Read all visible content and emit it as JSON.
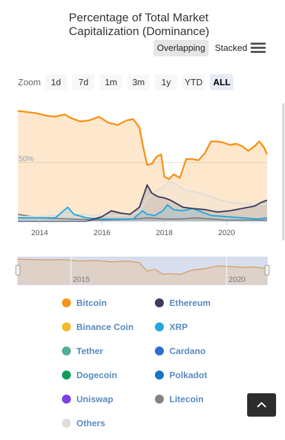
{
  "title_line1": "Percentage of Total Market",
  "title_line2": "Capitalization (Dominance)",
  "modes": [
    "Overlapping",
    "Stacked"
  ],
  "active_mode": "Overlapping",
  "zoom": {
    "label": "Zoom",
    "options": [
      "1d",
      "7d",
      "1m",
      "3m",
      "1y",
      "YTD",
      "ALL"
    ],
    "active": "ALL"
  },
  "colors": {
    "bitcoin": "#f7931a",
    "ethereum": "#3c3c5d",
    "binance": "#f3ba2f",
    "xrp": "#23a7e0",
    "tether": "#50af95",
    "cardano": "#2a71d0",
    "dogecoin": "#0f9d58",
    "polkadot": "#1475c4",
    "uniswap": "#7b3fe4",
    "litecoin": "#838383",
    "others": "#dddddd"
  },
  "legend": [
    {
      "name": "Bitcoin",
      "color": "#f7931a"
    },
    {
      "name": "Ethereum",
      "color": "#3c3c5d"
    },
    {
      "name": "Binance Coin",
      "color": "#f3ba2f"
    },
    {
      "name": "XRP",
      "color": "#23a7e0"
    },
    {
      "name": "Tether",
      "color": "#50af95"
    },
    {
      "name": "Cardano",
      "color": "#2a71d0"
    },
    {
      "name": "Dogecoin",
      "color": "#0f9d58"
    },
    {
      "name": "Polkadot",
      "color": "#1475c4"
    },
    {
      "name": "Uniswap",
      "color": "#7b3fe4"
    },
    {
      "name": "Litecoin",
      "color": "#838383"
    },
    {
      "name": "Others",
      "color": "#dddddd"
    }
  ],
  "chart_data": {
    "type": "area",
    "title": "Percentage of Total Market Capitalization (Dominance)",
    "y_reference_label": "50%",
    "y_reference_value": 50,
    "ylim": [
      0,
      100
    ],
    "xlim": [
      2013.3,
      2021.3
    ],
    "x_ticks": [
      2014,
      2016,
      2018,
      2020
    ],
    "navigator_x_ticks": [
      2015,
      2020
    ],
    "series": [
      {
        "name": "Bitcoin",
        "color": "#f7931a",
        "fill": true,
        "x": [
          2013.3,
          2013.6,
          2013.9,
          2014.2,
          2014.5,
          2014.8,
          2015.0,
          2015.3,
          2015.6,
          2015.9,
          2016.2,
          2016.5,
          2016.8,
          2017.0,
          2017.2,
          2017.3,
          2017.45,
          2017.6,
          2017.75,
          2017.9,
          2018.0,
          2018.15,
          2018.3,
          2018.5,
          2018.7,
          2018.9,
          2019.1,
          2019.3,
          2019.5,
          2019.7,
          2019.9,
          2020.1,
          2020.3,
          2020.5,
          2020.7,
          2020.9,
          2021.05,
          2021.2,
          2021.3
        ],
        "y": [
          94,
          93,
          92,
          90,
          89,
          91,
          88,
          85,
          86,
          89,
          84,
          82,
          86,
          87,
          80,
          66,
          48,
          49,
          55,
          57,
          38,
          36,
          40,
          37,
          53,
          53,
          52,
          58,
          68,
          68,
          67,
          65,
          66,
          64,
          60,
          64,
          68,
          63,
          57
        ]
      },
      {
        "name": "Ethereum",
        "color": "#3c3c5d",
        "fill": false,
        "x": [
          2013.3,
          2015.5,
          2016.0,
          2016.3,
          2016.6,
          2016.9,
          2017.2,
          2017.45,
          2017.6,
          2017.8,
          2018.0,
          2018.2,
          2018.4,
          2018.6,
          2018.9,
          2019.3,
          2019.7,
          2020.1,
          2020.5,
          2020.9,
          2021.1,
          2021.3
        ],
        "y": [
          0,
          0,
          4,
          9,
          7,
          6,
          12,
          31,
          24,
          21,
          20,
          18,
          15,
          12,
          11,
          10,
          8,
          9,
          11,
          13,
          16,
          18
        ]
      },
      {
        "name": "XRP",
        "color": "#23a7e0",
        "fill": false,
        "x": [
          2013.3,
          2014.5,
          2014.9,
          2015.1,
          2015.5,
          2016.0,
          2016.5,
          2017.0,
          2017.3,
          2017.45,
          2017.7,
          2017.95,
          2018.1,
          2018.3,
          2018.6,
          2018.9,
          2019.5,
          2020.0,
          2020.5,
          2021.0,
          2021.3
        ],
        "y": [
          3,
          3,
          12,
          6,
          3,
          2,
          2,
          2,
          9,
          6,
          5,
          9,
          14,
          10,
          9,
          11,
          5,
          4,
          3,
          2,
          3
        ]
      },
      {
        "name": "Others",
        "color": "#dddddd",
        "fill": false,
        "x": [
          2013.3,
          2014.0,
          2015.0,
          2016.0,
          2016.8,
          2017.2,
          2017.45,
          2017.7,
          2018.0,
          2018.15,
          2018.4,
          2018.7,
          2019.0,
          2019.4,
          2019.8,
          2020.2,
          2020.6,
          2021.0,
          2021.3
        ],
        "y": [
          4,
          4,
          6,
          5,
          5,
          8,
          20,
          25,
          30,
          34,
          31,
          26,
          25,
          22,
          18,
          16,
          15,
          14,
          15
        ]
      },
      {
        "name": "Litecoin",
        "color": "#838383",
        "fill": false,
        "x": [
          2013.3,
          2014.0,
          2015.0,
          2016.0,
          2017.0,
          2017.5,
          2018.0,
          2018.5,
          2019.0,
          2020.0,
          2021.3
        ],
        "y": [
          6,
          3,
          2,
          1,
          2,
          3,
          2,
          2,
          3,
          1,
          1
        ]
      }
    ],
    "navigator": {
      "x": [
        2013.3,
        2013.8,
        2014.3,
        2014.8,
        2015.3,
        2015.8,
        2016.3,
        2016.8,
        2017.2,
        2017.45,
        2017.7,
        2017.95,
        2018.2,
        2018.5,
        2018.9,
        2019.3,
        2019.7,
        2020.1,
        2020.5,
        2020.9,
        2021.3
      ],
      "y": [
        92,
        91,
        90,
        91,
        86,
        88,
        83,
        86,
        80,
        49,
        56,
        38,
        40,
        37,
        53,
        58,
        68,
        66,
        63,
        64,
        58
      ]
    }
  },
  "scroll_top": "scroll-to-top"
}
